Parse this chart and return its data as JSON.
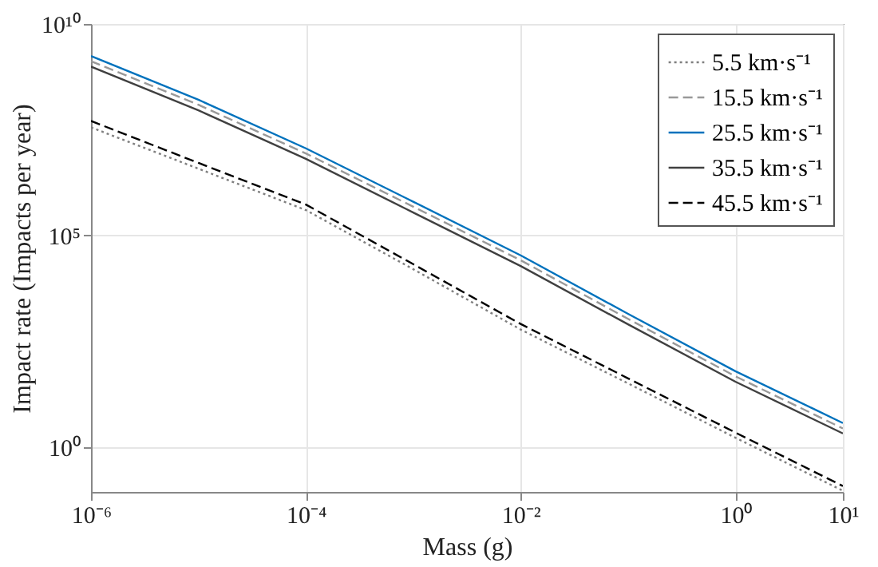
{
  "chart_data": {
    "type": "line",
    "xlabel": "Mass (g)",
    "ylabel": "Impact rate (Impacts per year)",
    "x": [
      1e-06,
      1e-05,
      0.0001,
      0.001,
      0.01,
      0.1,
      1,
      10
    ],
    "series": [
      {
        "name": "5.5 km·s⁻¹",
        "color": "#7f7f7f",
        "line_style": "dotted",
        "values": [
          36000000.0,
          3800000.0,
          400000.0,
          16000.0,
          600,
          32,
          1.66,
          0.093
        ]
      },
      {
        "name": "15.5 km·s⁻¹",
        "color": "#999999",
        "line_style": "dashed",
        "values": [
          1320000000.0,
          123000000.0,
          8700000.0,
          480000.0,
          26000.0,
          1070,
          47,
          2.75
        ]
      },
      {
        "name": "25.5 km·s⁻¹",
        "color": "#0072bd",
        "line_style": "solid",
        "values": [
          1740000000.0,
          162000000.0,
          11500000.0,
          630000.0,
          34000.0,
          1410,
          62,
          3.7
        ]
      },
      {
        "name": "35.5 km·s⁻¹",
        "color": "#404040",
        "line_style": "solid",
        "values": [
          980000000.0,
          91000000.0,
          6500000.0,
          350000.0,
          19000.0,
          794,
          35,
          2.1
        ]
      },
      {
        "name": "45.5 km·s⁻¹",
        "color": "#000000",
        "line_style": "dashed",
        "values": [
          51000000.0,
          5200000.0,
          540000.0,
          21000.0,
          813,
          42,
          2.2,
          0.12
        ]
      }
    ],
    "log": "xy",
    "xlim": [
      1e-06,
      10
    ],
    "ylim": [
      0.087,
      10000000000.0
    ],
    "xticks": [
      {
        "value": 1e-06,
        "label": "10⁻⁶"
      },
      {
        "value": 0.0001,
        "label": "10⁻⁴"
      },
      {
        "value": 0.01,
        "label": "10⁻²"
      },
      {
        "value": 1,
        "label": "10⁰"
      },
      {
        "value": 10,
        "label": "10¹"
      }
    ],
    "yticks": [
      {
        "value": 1,
        "label": "10⁰"
      },
      {
        "value": 100000.0,
        "label": "10⁵"
      },
      {
        "value": 10000000000.0,
        "label": "10¹⁰"
      }
    ],
    "grid": true,
    "legend": "top right"
  }
}
